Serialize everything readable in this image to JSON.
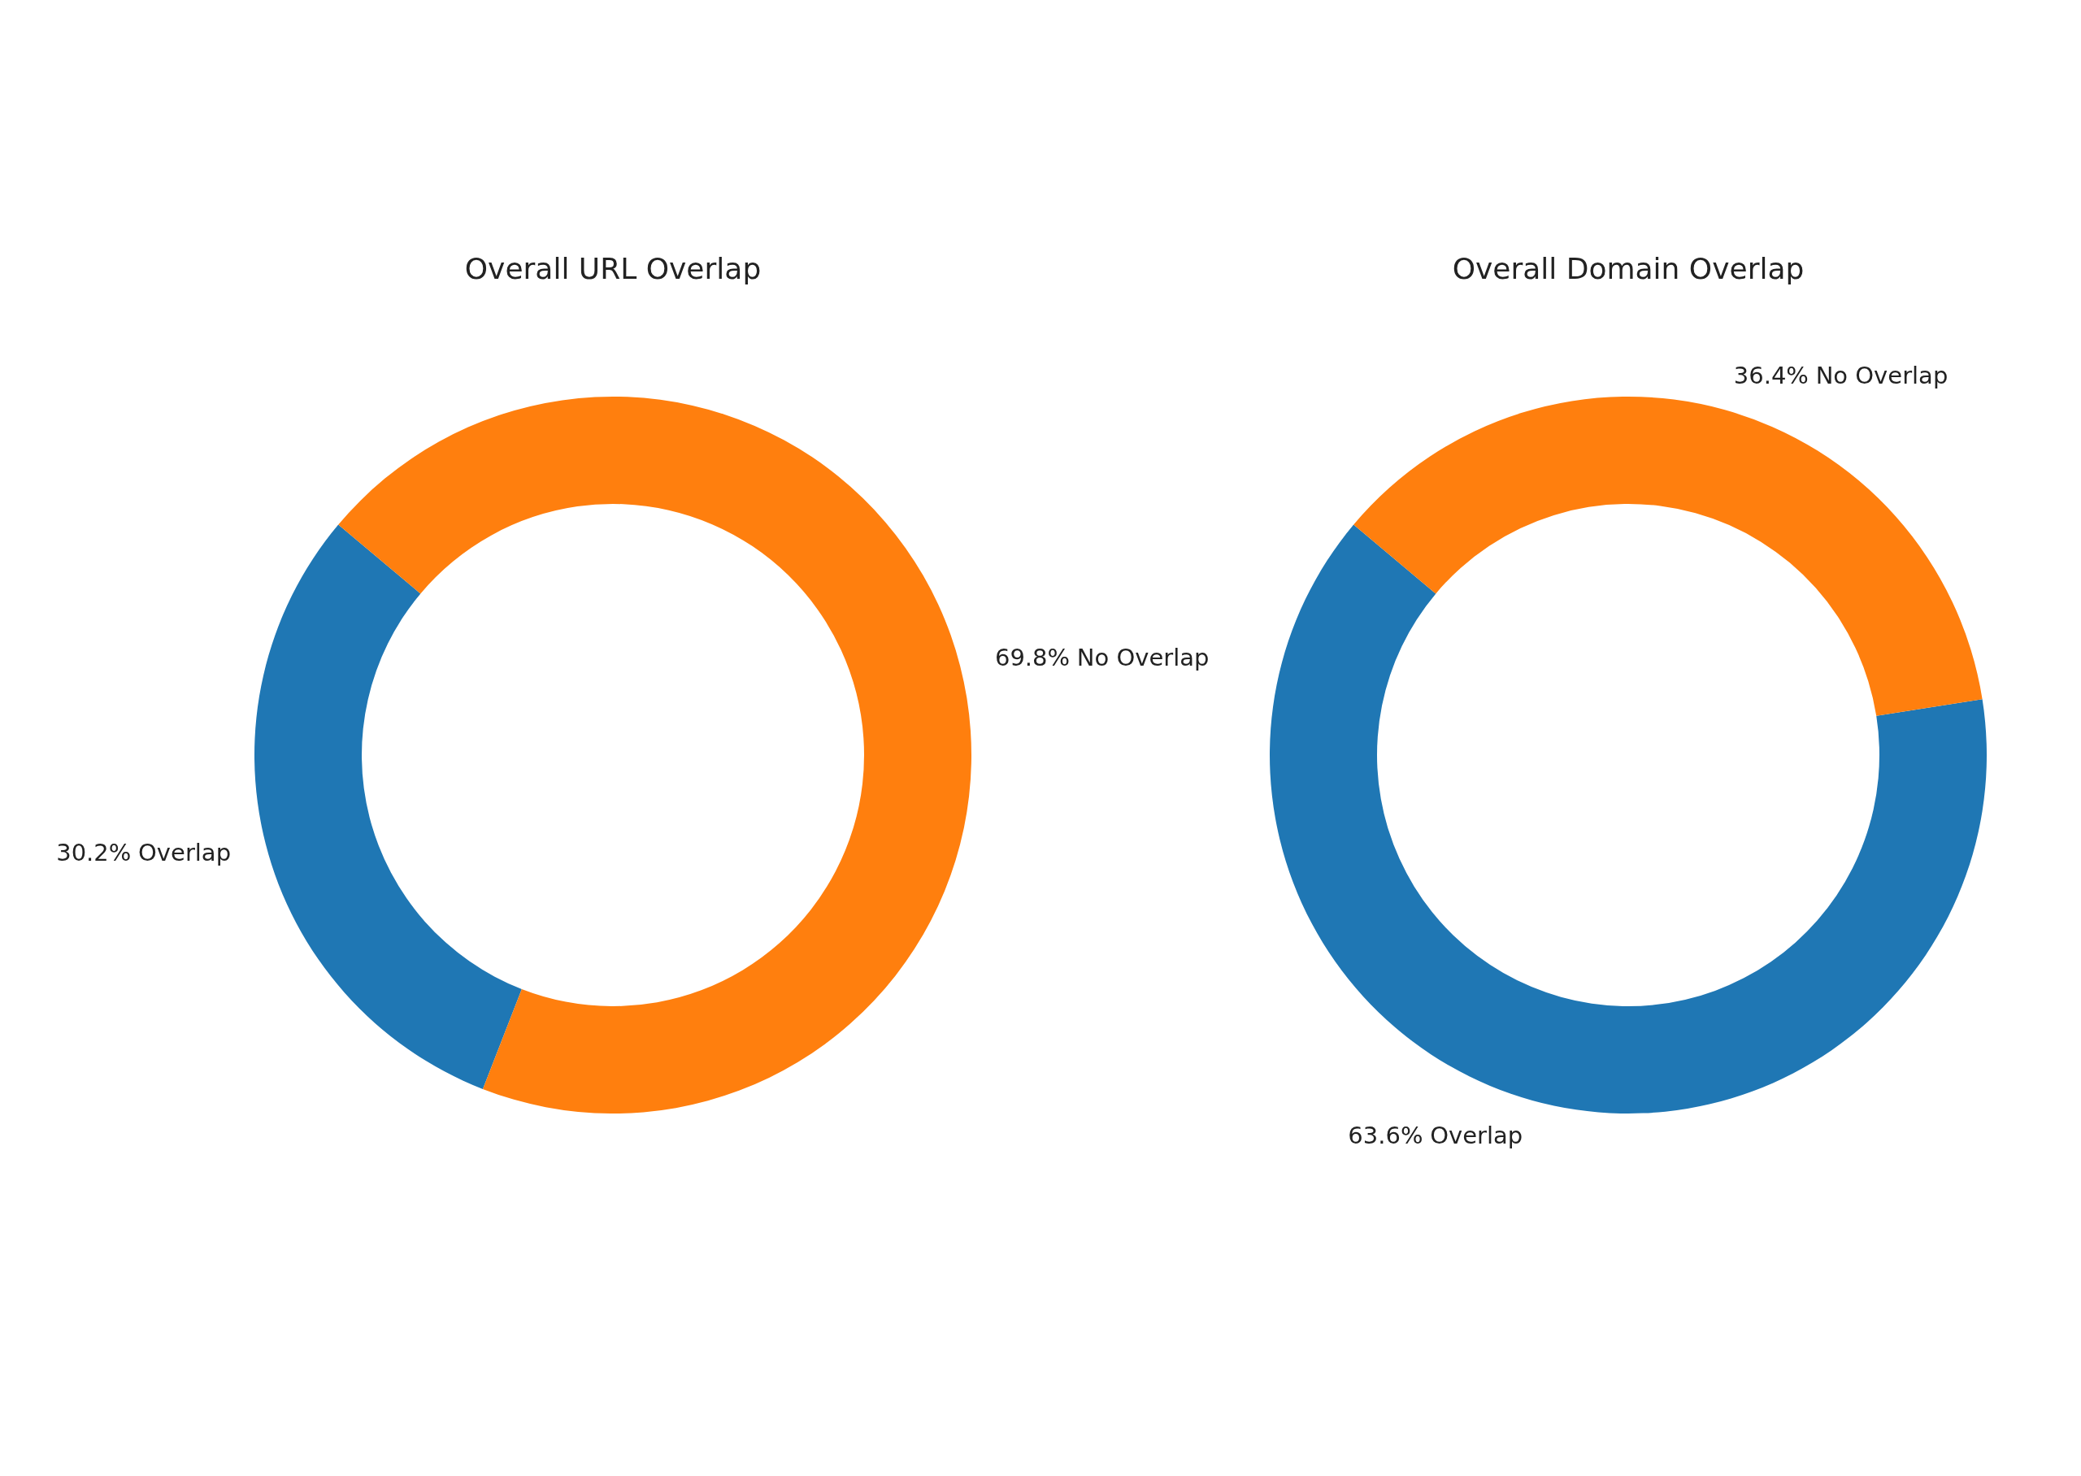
{
  "chart_data": [
    {
      "type": "donut",
      "title": "Overall URL Overlap",
      "categories": [
        "Overlap",
        "No Overlap"
      ],
      "values": [
        30.2,
        69.8
      ],
      "colors": [
        "#1f77b4",
        "#ff7f0e"
      ],
      "value_labels": [
        "30.2%",
        "69.8%"
      ]
    },
    {
      "type": "donut",
      "title": "Overall Domain Overlap",
      "categories": [
        "Overlap",
        "No Overlap"
      ],
      "values": [
        63.6,
        36.4
      ],
      "colors": [
        "#1f77b4",
        "#ff7f0e"
      ],
      "value_labels": [
        "63.6%",
        "36.4%"
      ]
    }
  ]
}
